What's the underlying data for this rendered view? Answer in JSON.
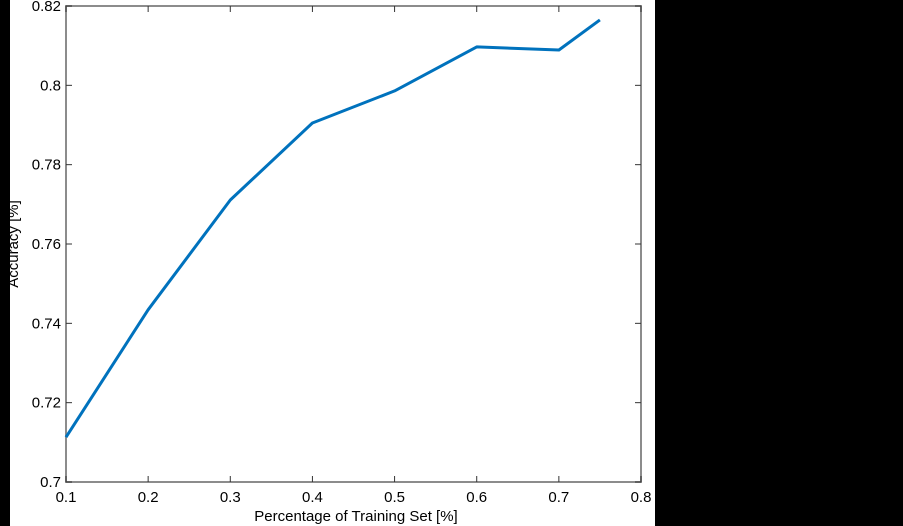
{
  "chart_data": {
    "type": "line",
    "title": "",
    "xlabel": "Percentage of Training Set [%]",
    "ylabel": "Accuracy [%]",
    "xlim": [
      0.1,
      0.8
    ],
    "ylim": [
      0.7,
      0.82
    ],
    "xticks": [
      "0.1",
      "0.2",
      "0.3",
      "0.4",
      "0.5",
      "0.6",
      "0.7",
      "0.8"
    ],
    "yticks": [
      "0.7",
      "0.72",
      "0.74",
      "0.76",
      "0.78",
      "0.8",
      "0.82"
    ],
    "grid": false,
    "legend": null,
    "series": [
      {
        "name": "Accuracy",
        "color": "#0072BD",
        "x": [
          0.1,
          0.2,
          0.3,
          0.4,
          0.5,
          0.6,
          0.7,
          0.75
        ],
        "y": [
          0.7113,
          0.7434,
          0.7711,
          0.7905,
          0.7986,
          0.8097,
          0.8089,
          0.8165
        ]
      }
    ]
  },
  "colors": {
    "line": "#0072BD",
    "axis": "#8c8c8c",
    "background": "#ffffff",
    "outer": "#000000"
  }
}
